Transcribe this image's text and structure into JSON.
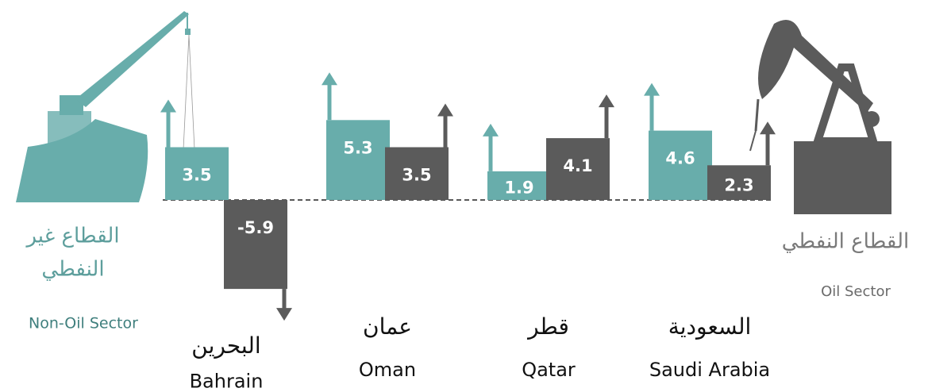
{
  "chart_data": {
    "type": "bar",
    "categories": [
      "Bahrain",
      "Oman",
      "Qatar",
      "Saudi Arabia"
    ],
    "categories_ar": [
      "البحرين",
      "عمان",
      "قطر",
      "السعودية"
    ],
    "series": [
      {
        "name": "Non-Oil Sector",
        "name_ar_lines": [
          "القطاع غير",
          "النفطي"
        ],
        "color": "#68adab",
        "values": [
          3.5,
          5.3,
          1.9,
          4.6
        ]
      },
      {
        "name": "Oil Sector",
        "name_ar_lines": [
          "القطاع النفطي"
        ],
        "color": "#5b5b5b",
        "values": [
          -5.9,
          3.5,
          4.1,
          2.3
        ]
      }
    ]
  }
}
